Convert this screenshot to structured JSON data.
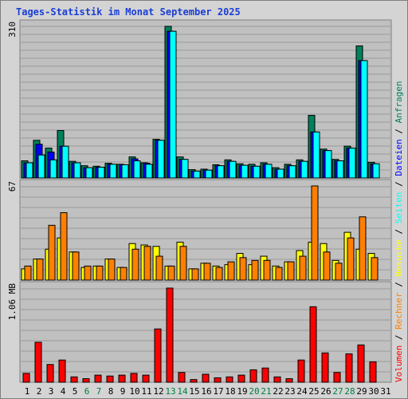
{
  "title": "Tages-Statistik im Monat September 2025",
  "colors": {
    "anfragen": "#00805b",
    "dateien": "#0000ff",
    "seiten": "#00ffff",
    "besuche": "#ffff00",
    "rechner": "#ff8000",
    "volumen": "#ff0000",
    "weekday_label": "#000000",
    "weekend_label": "#008040",
    "panel_bg": "#c0c0c0",
    "frame_bg": "#d4d4d4"
  },
  "chart_data": [
    {
      "type": "bar",
      "panel": "top",
      "ymax_label": "310",
      "ylim": [
        0,
        310
      ],
      "categories": [
        "1",
        "2",
        "3",
        "4",
        "5",
        "6",
        "7",
        "8",
        "9",
        "10",
        "11",
        "12",
        "13",
        "14",
        "15",
        "16",
        "17",
        "18",
        "19",
        "20",
        "21",
        "22",
        "23",
        "24",
        "25",
        "26",
        "27",
        "28",
        "29",
        "30",
        "31"
      ],
      "series": [
        {
          "name": "Anfragen",
          "color_key": "anfragen",
          "values": [
            35,
            77,
            61,
            97,
            34,
            25,
            24,
            30,
            28,
            43,
            31,
            79,
            310,
            43,
            17,
            18,
            27,
            37,
            29,
            28,
            31,
            21,
            28,
            37,
            128,
            59,
            38,
            65,
            270,
            32,
            0
          ]
        },
        {
          "name": "Dateien",
          "color_key": "dateien",
          "values": [
            31,
            69,
            53,
            65,
            31,
            21,
            22,
            28,
            27,
            39,
            30,
            77,
            300,
            38,
            14,
            16,
            25,
            34,
            26,
            24,
            28,
            18,
            25,
            34,
            94,
            56,
            35,
            61,
            240,
            29,
            0
          ]
        },
        {
          "name": "Seiten",
          "color_key": "seiten",
          "values": [
            31,
            47,
            37,
            65,
            31,
            21,
            22,
            28,
            27,
            35,
            28,
            77,
            300,
            38,
            14,
            16,
            25,
            34,
            26,
            24,
            28,
            18,
            25,
            34,
            94,
            56,
            35,
            61,
            240,
            29,
            0
          ]
        }
      ]
    },
    {
      "type": "bar",
      "panel": "middle",
      "ymax_label": "67",
      "ylim": [
        0,
        67
      ],
      "categories": [
        "1",
        "2",
        "3",
        "4",
        "5",
        "6",
        "7",
        "8",
        "9",
        "10",
        "11",
        "12",
        "13",
        "14",
        "15",
        "16",
        "17",
        "18",
        "19",
        "20",
        "21",
        "22",
        "23",
        "24",
        "25",
        "26",
        "27",
        "28",
        "29",
        "30",
        "31"
      ],
      "series": [
        {
          "name": "Besuche",
          "color_key": "besuche",
          "values": [
            8,
            15,
            22,
            30,
            20,
            9,
            10,
            15,
            9,
            26,
            25,
            24,
            10,
            27,
            8,
            12,
            10,
            11,
            19,
            11,
            17,
            10,
            13,
            21,
            27,
            26,
            14,
            34,
            22,
            19,
            0
          ]
        },
        {
          "name": "Rechner",
          "color_key": "rechner",
          "values": [
            10,
            15,
            39,
            48,
            20,
            10,
            10,
            15,
            9,
            22,
            24,
            17,
            10,
            24,
            8,
            12,
            9,
            13,
            16,
            14,
            14,
            9,
            13,
            17,
            67,
            20,
            12,
            30,
            45,
            16,
            0
          ]
        }
      ]
    },
    {
      "type": "bar",
      "panel": "bottom",
      "ymax_label": "1.06 MB",
      "ylim": [
        0,
        1.06
      ],
      "categories": [
        "1",
        "2",
        "3",
        "4",
        "5",
        "6",
        "7",
        "8",
        "9",
        "10",
        "11",
        "12",
        "13",
        "14",
        "15",
        "16",
        "17",
        "18",
        "19",
        "20",
        "21",
        "22",
        "23",
        "24",
        "25",
        "26",
        "27",
        "28",
        "29",
        "30",
        "31"
      ],
      "series": [
        {
          "name": "Volumen",
          "color_key": "volumen",
          "values": [
            0.1,
            0.45,
            0.2,
            0.25,
            0.06,
            0.04,
            0.08,
            0.07,
            0.08,
            0.1,
            0.08,
            0.6,
            1.06,
            0.11,
            0.03,
            0.09,
            0.05,
            0.06,
            0.08,
            0.14,
            0.16,
            0.06,
            0.04,
            0.25,
            0.85,
            0.33,
            0.11,
            0.32,
            0.42,
            0.23,
            0
          ]
        }
      ]
    }
  ],
  "legend_right": [
    {
      "label": "Volumen",
      "color_key": "volumen"
    },
    {
      "label": "Rechner",
      "color_key": "rechner"
    },
    {
      "label": "Besuche",
      "color_key": "besuche"
    },
    {
      "label": "Seiten",
      "color_key": "seiten"
    },
    {
      "label": "Dateien",
      "color_key": "dateien"
    },
    {
      "label": "Anfragen",
      "color_key": "anfragen"
    }
  ],
  "weekend_days": [
    "6",
    "7",
    "13",
    "14",
    "20",
    "21",
    "27",
    "28"
  ]
}
